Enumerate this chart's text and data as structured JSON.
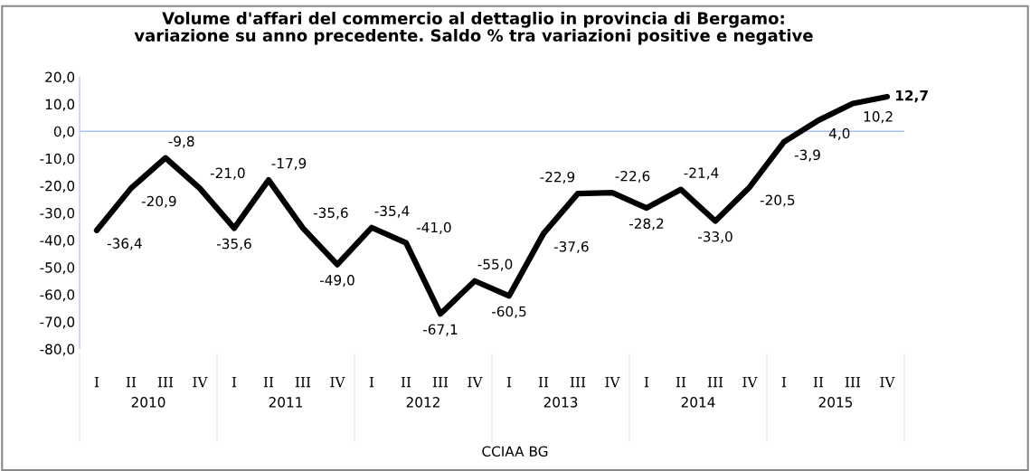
{
  "chart_data": {
    "type": "line",
    "title": "Volume d'affari del commercio al dettaglio in provincia di Bergamo:\nvariazione su anno precedente. Saldo % tra variazioni positive e negative",
    "categories": [
      "I",
      "II",
      "III",
      "IV",
      "I",
      "II",
      "III",
      "IV",
      "I",
      "II",
      "III",
      "IV",
      "I",
      "II",
      "III",
      "IV",
      "I",
      "II",
      "III",
      "IV",
      "I",
      "II",
      "III",
      "IV"
    ],
    "series": [
      {
        "color": "#000000",
        "values": [
          -36.4,
          -20.9,
          -9.8,
          -21.0,
          -35.6,
          -17.9,
          -35.6,
          -49.0,
          -35.4,
          -41.0,
          -67.1,
          -55.0,
          -60.5,
          -37.6,
          -22.9,
          -22.6,
          -28.2,
          -21.4,
          -33.0,
          -20.5,
          -3.9,
          4.0,
          10.2,
          12.7
        ],
        "value_labels": [
          "-36,4",
          "-20,9",
          "-9,8",
          "-21,0",
          "-35,6",
          "-17,9",
          "-35,6",
          "-49,0",
          "-35,4",
          "-41,0",
          "-67,1",
          "-55,0",
          "-60,5",
          "-37,6",
          "-22,9",
          "-22,6",
          "-28,2",
          "-21,4",
          "-33,0",
          "-20,5",
          "-3,9",
          "4,0",
          "10,2",
          "12,7"
        ]
      }
    ],
    "ylim": [
      -80,
      20
    ],
    "yticks": [
      {
        "value": -80,
        "label": "-80,0"
      },
      {
        "value": -70,
        "label": "-70,0"
      },
      {
        "value": -60,
        "label": "-60,0"
      },
      {
        "value": -50,
        "label": "-50,0"
      },
      {
        "value": -40,
        "label": "-40,0"
      },
      {
        "value": -30,
        "label": "-30,0"
      },
      {
        "value": -20,
        "label": "-20,0"
      },
      {
        "value": -10,
        "label": "-10,0"
      },
      {
        "value": 0,
        "label": "0,0"
      },
      {
        "value": 10,
        "label": "10,0"
      },
      {
        "value": 20,
        "label": "20,0"
      }
    ],
    "ref_lines": [
      {
        "axis": "y",
        "value": 0,
        "color": "#a8c0ec"
      }
    ],
    "grid": false,
    "legend": false,
    "marker": "none",
    "line_style": "solid",
    "annotations": [
      "2010",
      "2011",
      "2012",
      "2013",
      "2014",
      "2015",
      "CCIAA BG"
    ]
  }
}
